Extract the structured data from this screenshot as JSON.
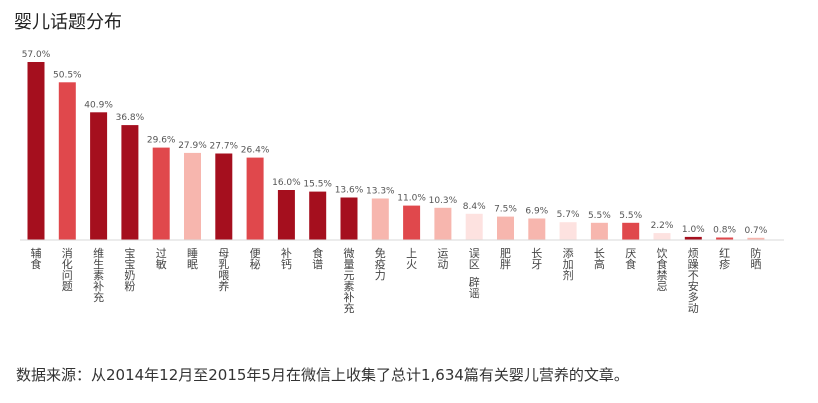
{
  "title": "婴儿话题分布",
  "source_note": "数据来源：从2014年12月至2015年5月在微信上收集了总计1,634篇有关婴儿营养的文章。",
  "chart_data": {
    "type": "bar",
    "title": "婴儿话题分布",
    "xlabel": "",
    "ylabel": "",
    "ylim": [
      0,
      60
    ],
    "grid": false,
    "legend": "none",
    "categories": [
      "辅食",
      "消化问题",
      "维生素补充",
      "宝宝奶粉",
      "过敏",
      "睡眠",
      "母乳喂养",
      "便秘",
      "补钙",
      "食谱",
      "微量元素补充",
      "免疫力",
      "上火",
      "运动",
      "误区 辟谣",
      "肥胖",
      "长牙",
      "添加剂",
      "长高",
      "厌食",
      "饮食禁忌",
      "烦躁不安多动",
      "红疹",
      "防晒"
    ],
    "values": [
      57.0,
      50.5,
      40.9,
      36.8,
      29.6,
      27.9,
      27.7,
      26.4,
      16.0,
      15.5,
      13.6,
      13.3,
      11.0,
      10.3,
      8.4,
      7.5,
      6.9,
      5.7,
      5.5,
      5.5,
      2.2,
      1.0,
      0.8,
      0.7
    ],
    "value_labels": [
      "57.0%",
      "50.5%",
      "40.9%",
      "36.8%",
      "29.6%",
      "27.9%",
      "27.7%",
      "26.4%",
      "16.0%",
      "15.5%",
      "13.6%",
      "13.3%",
      "11.0%",
      "10.3%",
      "8.4%",
      "7.5%",
      "6.9%",
      "5.7%",
      "5.5%",
      "5.5%",
      "2.2%",
      "1.0%",
      "0.8%",
      "0.7%"
    ],
    "colors": [
      "#a50f1e",
      "#e0484c",
      "#a50f1e",
      "#a50f1e",
      "#e0484c",
      "#f7b6ae",
      "#a50f1e",
      "#e0484c",
      "#a50f1e",
      "#a50f1e",
      "#a50f1e",
      "#f7b6ae",
      "#e0484c",
      "#f7b6ae",
      "#fde2e0",
      "#f7b6ae",
      "#f7b6ae",
      "#fde2e0",
      "#f7b6ae",
      "#e0484c",
      "#fde2e0",
      "#a50f1e",
      "#e0484c",
      "#f7b6ae"
    ]
  }
}
